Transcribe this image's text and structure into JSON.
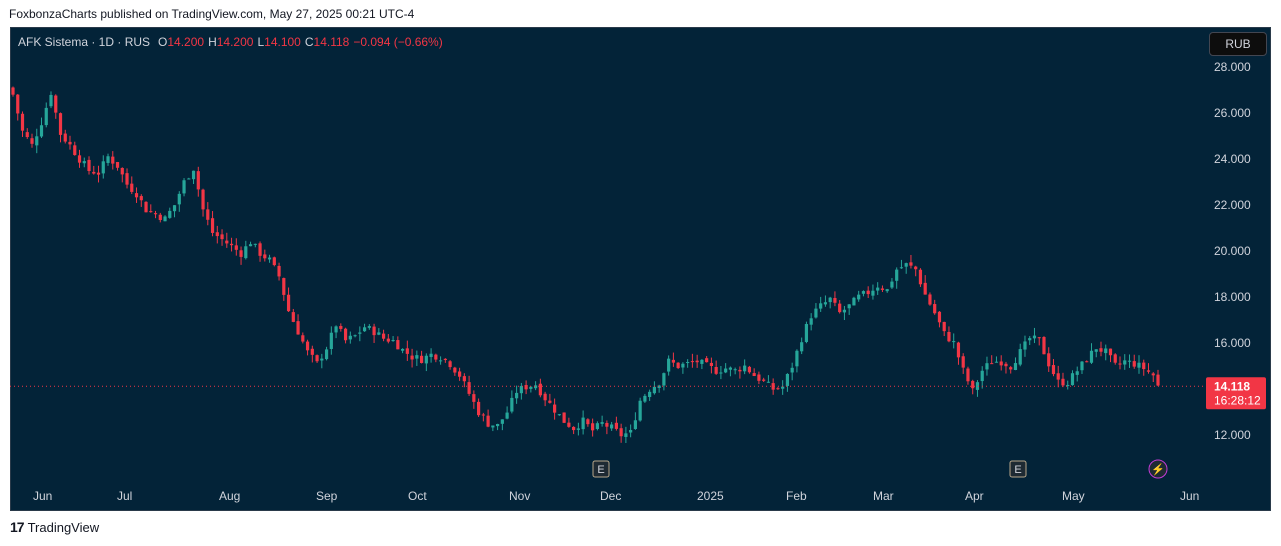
{
  "publisher_line": "FoxbonzaCharts published on TradingView.com, May 27, 2025 00:21 UTC-4",
  "header": {
    "symbol": "AFK Sistema · 1D · RUS",
    "o_label": "O",
    "o_value": "14.200",
    "h_label": "H",
    "h_value": "14.200",
    "l_label": "L",
    "l_value": "14.100",
    "c_label": "C",
    "c_value": "14.118",
    "change": "−0.094 (−0.66%)"
  },
  "currency_button": "RUB",
  "last_price": {
    "value": "14.118",
    "countdown": "16:28:12"
  },
  "event_markers": [
    {
      "label": "E",
      "month": "Dec"
    },
    {
      "label": "E",
      "month": "Apr"
    },
    {
      "label": "⚡",
      "month": "May"
    }
  ],
  "footer": {
    "logo": "17",
    "brand": "TradingView"
  },
  "colors": {
    "up": "#26a69a",
    "down": "#f23645",
    "background": "#032338",
    "text": "#d1d4dc"
  },
  "chart_data": {
    "type": "candlestick",
    "ylim": [
      10.5,
      29.5
    ],
    "y_ticks": [
      "28.000",
      "26.000",
      "24.000",
      "22.000",
      "20.000",
      "18.000",
      "16.000",
      "12.000"
    ],
    "y_tick_values": [
      28,
      26,
      24,
      22,
      20,
      18,
      16,
      12
    ],
    "x_ticks": [
      "Jun",
      "Jul",
      "Aug",
      "Sep",
      "Oct",
      "Nov",
      "Dec",
      "2025",
      "Feb",
      "Mar",
      "Apr",
      "May",
      "Jun"
    ],
    "close_path": [
      [
        0,
        26.8
      ],
      [
        2,
        25.2
      ],
      [
        4,
        24.6
      ],
      [
        6,
        25.6
      ],
      [
        8,
        26.9
      ],
      [
        10,
        25.1
      ],
      [
        12,
        24.6
      ],
      [
        14,
        24.0
      ],
      [
        16,
        23.5
      ],
      [
        18,
        23.4
      ],
      [
        20,
        24.1
      ],
      [
        22,
        23.7
      ],
      [
        24,
        22.9
      ],
      [
        26,
        22.5
      ],
      [
        28,
        21.8
      ],
      [
        30,
        21.6
      ],
      [
        32,
        21.4
      ],
      [
        34,
        22.0
      ],
      [
        36,
        23.0
      ],
      [
        38,
        23.6
      ],
      [
        40,
        21.8
      ],
      [
        42,
        20.8
      ],
      [
        44,
        20.5
      ],
      [
        46,
        20.2
      ],
      [
        48,
        19.9
      ],
      [
        50,
        20.4
      ],
      [
        52,
        19.9
      ],
      [
        54,
        19.6
      ],
      [
        56,
        18.9
      ],
      [
        58,
        17.4
      ],
      [
        60,
        16.5
      ],
      [
        62,
        15.6
      ],
      [
        64,
        15.1
      ],
      [
        66,
        15.8
      ],
      [
        68,
        16.8
      ],
      [
        70,
        16.1
      ],
      [
        72,
        16.3
      ],
      [
        74,
        16.7
      ],
      [
        76,
        16.5
      ],
      [
        78,
        16.2
      ],
      [
        80,
        16.1
      ],
      [
        82,
        15.7
      ],
      [
        84,
        15.4
      ],
      [
        86,
        15.3
      ],
      [
        88,
        15.5
      ],
      [
        90,
        15.4
      ],
      [
        92,
        15.1
      ],
      [
        94,
        14.6
      ],
      [
        96,
        13.8
      ],
      [
        98,
        13.0
      ],
      [
        100,
        12.5
      ],
      [
        102,
        12.4
      ],
      [
        104,
        13.0
      ],
      [
        106,
        13.9
      ],
      [
        108,
        14.1
      ],
      [
        110,
        14.2
      ],
      [
        112,
        13.6
      ],
      [
        114,
        13.1
      ],
      [
        116,
        12.6
      ],
      [
        118,
        12.3
      ],
      [
        120,
        12.6
      ],
      [
        122,
        12.2
      ],
      [
        124,
        12.5
      ],
      [
        126,
        12.3
      ],
      [
        128,
        12.0
      ],
      [
        130,
        12.1
      ],
      [
        132,
        13.5
      ],
      [
        134,
        14.0
      ],
      [
        136,
        14.3
      ],
      [
        138,
        15.2
      ],
      [
        140,
        15.0
      ],
      [
        142,
        15.1
      ],
      [
        144,
        15.2
      ],
      [
        146,
        15.0
      ],
      [
        148,
        14.8
      ],
      [
        150,
        14.9
      ],
      [
        152,
        14.8
      ],
      [
        154,
        15.0
      ],
      [
        156,
        14.6
      ],
      [
        158,
        14.3
      ],
      [
        160,
        14.0
      ],
      [
        162,
        14.1
      ],
      [
        164,
        15.0
      ],
      [
        166,
        16.2
      ],
      [
        168,
        17.2
      ],
      [
        170,
        17.6
      ],
      [
        172,
        17.9
      ],
      [
        174,
        17.3
      ],
      [
        176,
        17.6
      ],
      [
        178,
        18.0
      ],
      [
        180,
        18.2
      ],
      [
        182,
        18.5
      ],
      [
        184,
        18.3
      ],
      [
        186,
        19.2
      ],
      [
        188,
        19.4
      ],
      [
        190,
        19.2
      ],
      [
        192,
        18.1
      ],
      [
        194,
        17.3
      ],
      [
        196,
        16.4
      ],
      [
        198,
        16.0
      ],
      [
        200,
        14.8
      ],
      [
        202,
        13.9
      ],
      [
        204,
        14.8
      ],
      [
        206,
        15.2
      ],
      [
        208,
        15.2
      ],
      [
        210,
        15.0
      ],
      [
        212,
        15.6
      ],
      [
        214,
        16.2
      ],
      [
        216,
        16.1
      ],
      [
        218,
        15.1
      ],
      [
        220,
        14.3
      ],
      [
        222,
        14.3
      ],
      [
        224,
        14.8
      ],
      [
        226,
        15.3
      ],
      [
        228,
        15.8
      ],
      [
        230,
        15.6
      ],
      [
        232,
        15.0
      ],
      [
        234,
        15.2
      ],
      [
        236,
        15.1
      ],
      [
        238,
        14.9
      ],
      [
        240,
        14.6
      ],
      [
        241,
        14.118
      ]
    ]
  }
}
